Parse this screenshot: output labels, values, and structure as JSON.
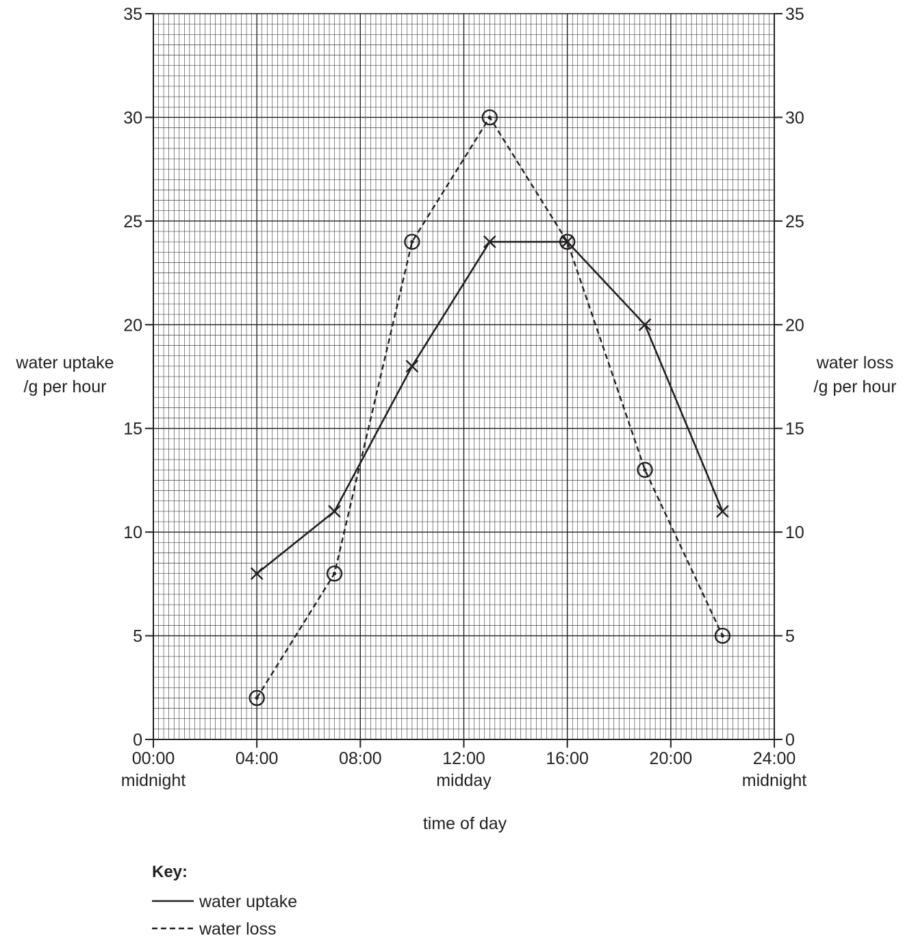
{
  "chart_data": {
    "type": "line",
    "x_unit": "hour",
    "xlim": [
      0,
      24
    ],
    "ylim": [
      0,
      35
    ],
    "x_ticks": [
      {
        "value": 0,
        "label": "00:00",
        "sub": "midnight"
      },
      {
        "value": 4,
        "label": "04:00",
        "sub": ""
      },
      {
        "value": 8,
        "label": "08:00",
        "sub": ""
      },
      {
        "value": 12,
        "label": "12:00",
        "sub": "midday"
      },
      {
        "value": 16,
        "label": "16:00",
        "sub": ""
      },
      {
        "value": 20,
        "label": "20:00",
        "sub": ""
      },
      {
        "value": 24,
        "label": "24:00",
        "sub": "midnight"
      }
    ],
    "y_ticks": [
      0,
      5,
      10,
      15,
      20,
      25,
      30,
      35
    ],
    "xlabel": "time of day",
    "ylabel_left": [
      "water uptake",
      "/g per hour"
    ],
    "ylabel_right": [
      "water loss",
      "/g per hour"
    ],
    "grid": true,
    "series": [
      {
        "name": "water uptake",
        "style": "solid",
        "marker": "cross",
        "x": [
          4,
          7,
          10,
          13,
          16,
          19,
          22
        ],
        "y": [
          8,
          11,
          18,
          24,
          24,
          20,
          11
        ]
      },
      {
        "name": "water loss",
        "style": "dashed",
        "marker": "circled-dot",
        "x": [
          4,
          7,
          10,
          13,
          16,
          19,
          22
        ],
        "y": [
          2,
          8,
          24,
          30,
          24,
          13,
          5
        ]
      }
    ],
    "legend": {
      "title": "Key:",
      "placement": "bottom-left"
    }
  }
}
